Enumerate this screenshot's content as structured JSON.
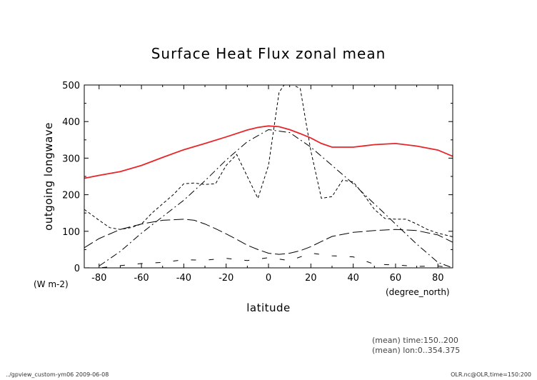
{
  "chart_data": {
    "type": "line",
    "title": "Surface Heat Flux zonal mean",
    "xlabel": "latitude",
    "ylabel": "outgoing longwave",
    "x_units": "(degree_north)",
    "y_units": "(W m-2)",
    "xlim": [
      -87,
      87
    ],
    "ylim": [
      0,
      500
    ],
    "xticks": [
      -80,
      -60,
      -40,
      -20,
      0,
      20,
      40,
      60,
      80
    ],
    "yticks": [
      0,
      100,
      200,
      300,
      400,
      500
    ],
    "grid": false,
    "series": [
      {
        "color": "#e8262a",
        "style": "solid",
        "x": [
          -87,
          -80,
          -70,
          -60,
          -50,
          -40,
          -30,
          -20,
          -10,
          -5,
          0,
          5,
          10,
          15,
          20,
          25,
          30,
          40,
          50,
          60,
          70,
          80,
          87
        ],
        "y": [
          245,
          253,
          263,
          280,
          302,
          323,
          340,
          358,
          377,
          384,
          388,
          386,
          378,
          367,
          355,
          340,
          330,
          330,
          337,
          340,
          333,
          322,
          305
        ]
      },
      {
        "color": "#000000",
        "style": "dashdot",
        "x": [
          -80,
          -70,
          -60,
          -50,
          -40,
          -30,
          -20,
          -10,
          0,
          10,
          20,
          30,
          40,
          50,
          60,
          70,
          80,
          87
        ],
        "y": [
          5,
          45,
          95,
          140,
          185,
          238,
          295,
          345,
          378,
          370,
          330,
          280,
          230,
          175,
          120,
          65,
          15,
          0
        ]
      },
      {
        "color": "#000000",
        "style": "longdash",
        "x": [
          -87,
          -80,
          -70,
          -60,
          -50,
          -40,
          -35,
          -30,
          -25,
          -20,
          -15,
          -10,
          -5,
          0,
          5,
          10,
          15,
          20,
          25,
          30,
          40,
          50,
          60,
          70,
          80,
          87
        ],
        "y": [
          55,
          80,
          105,
          120,
          130,
          133,
          130,
          120,
          107,
          93,
          78,
          62,
          50,
          40,
          37,
          40,
          47,
          58,
          72,
          86,
          97,
          102,
          105,
          102,
          90,
          70
        ]
      },
      {
        "color": "#000000",
        "style": "shortdash",
        "x": [
          -87,
          -80,
          -75,
          -70,
          -65,
          -60,
          -55,
          -50,
          -45,
          -40,
          -35,
          -30,
          -25,
          -20,
          -15,
          -10,
          -5,
          0,
          3,
          5,
          8,
          10,
          15,
          20,
          25,
          30,
          35,
          40,
          45,
          50,
          55,
          60,
          65,
          70,
          75,
          80,
          87
        ],
        "y": [
          160,
          130,
          110,
          105,
          110,
          120,
          150,
          175,
          200,
          230,
          232,
          228,
          230,
          280,
          310,
          250,
          190,
          280,
          400,
          480,
          505,
          505,
          490,
          320,
          190,
          195,
          240,
          235,
          200,
          160,
          135,
          133,
          133,
          120,
          105,
          95,
          85
        ]
      },
      {
        "color": "#000000",
        "style": "dotted",
        "x": [
          -87,
          -78,
          -70,
          -60,
          -50,
          -40,
          -30,
          -20,
          -10,
          0,
          10,
          20,
          30,
          40,
          50,
          60,
          70,
          80,
          87
        ],
        "y": [
          0,
          1,
          6,
          12,
          15,
          22,
          21,
          26,
          20,
          28,
          20,
          40,
          33,
          30,
          10,
          8,
          4,
          5,
          0
        ]
      }
    ]
  },
  "annotations": {
    "mean_time": "(mean) time:150..200",
    "mean_lon": "(mean) lon:0..354.375"
  },
  "footer": {
    "left": "../gpview_custom-ym06  2009-06-08",
    "right": "OLR.nc@OLR,time=150:200"
  }
}
